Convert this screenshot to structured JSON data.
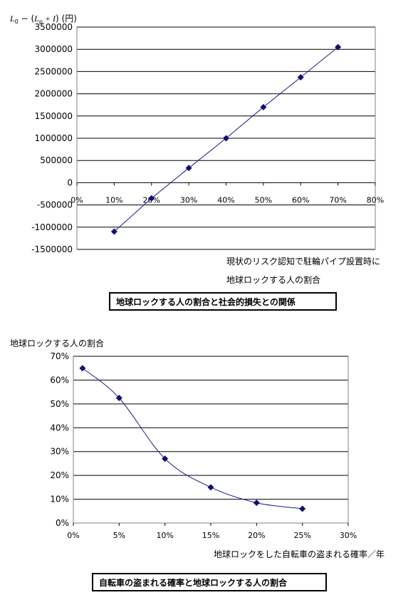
{
  "chart_data": [
    {
      "type": "line",
      "ylabel_parts": {
        "base": "L",
        "base_sub": "0",
        "minus_paren": " − (",
        "p": "L",
        "p_sub": "p",
        "plus_I": " + I",
        "close": ")",
        "unit": " (円)"
      },
      "xlabel_lines": [
        "現状のリスク認知で駐輪パイプ設置時に",
        "地球ロックする人の割合"
      ],
      "caption": "地球ロックする人の割合と社会的損失との関係",
      "xlim": [
        0,
        0.8
      ],
      "ylim": [
        -1500000,
        3500000
      ],
      "x_ticks": [
        "0%",
        "10%",
        "20%",
        "30%",
        "40%",
        "50%",
        "60%",
        "70%",
        "80%"
      ],
      "y_ticks": [
        "3500000",
        "3000000",
        "2500000",
        "2000000",
        "1500000",
        "1000000",
        "500000",
        "0",
        "-500000",
        "-1000000",
        "-1500000"
      ],
      "series": [
        {
          "x": [
            0.1,
            0.2,
            0.3,
            0.4,
            0.5,
            0.6,
            0.7
          ],
          "y": [
            -1100000,
            -350000,
            330000,
            1000000,
            1700000,
            2370000,
            3050000
          ]
        }
      ],
      "grid": "horizontal",
      "colors": {
        "line": "#1a1a8c",
        "marker": "#101070",
        "grid": "#000000"
      }
    },
    {
      "type": "line",
      "ylabel": "地球ロックする人の割合",
      "xlabel": "地球ロックをした自転車の盗まれる確率／年",
      "caption": "自転車の盗まれる確率と地球ロックする人の割合",
      "xlim": [
        0,
        0.3
      ],
      "ylim": [
        0,
        0.7
      ],
      "x_ticks": [
        "0%",
        "5%",
        "10%",
        "15%",
        "20%",
        "25%",
        "30%"
      ],
      "y_ticks": [
        "70%",
        "60%",
        "50%",
        "40%",
        "30%",
        "20%",
        "10%",
        "0%"
      ],
      "series": [
        {
          "x": [
            0.01,
            0.05,
            0.1,
            0.15,
            0.2,
            0.25
          ],
          "y": [
            0.65,
            0.525,
            0.27,
            0.15,
            0.085,
            0.06
          ]
        }
      ],
      "grid": "horizontal",
      "colors": {
        "line": "#1a1a8c",
        "marker": "#101070",
        "grid": "#000000"
      }
    }
  ]
}
